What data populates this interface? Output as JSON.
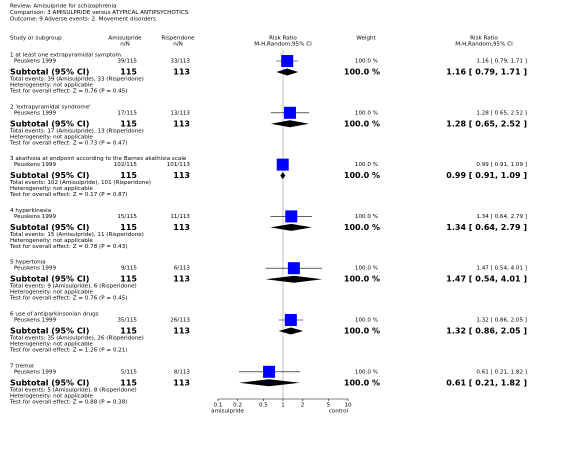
{
  "header": {
    "review": "Review:   Amisulpride for schizophrenia",
    "comparison": "Comparison:   3 AMISULPRIDE versus ATYPICAL ANTIPSYCHOTICS",
    "outcome": "Outcome:   9 Adverse events: 2. Movement disorders"
  },
  "columns": {
    "study": "Study or subgroup",
    "exp": "Amisulpride",
    "exp_unit": "n/N",
    "ctrl": "Risperidone",
    "ctrl_unit": "n/N",
    "plot": "Risk Ratio",
    "plot_method": "M-H,Random,95% CI",
    "weight": "Weight",
    "result": "Risk Ratio",
    "result_method": "M-H,Random,95% CI"
  },
  "subtotal_label": "Subtotal (95% CI)",
  "subgroups": [
    {
      "title": "1 at least one extrapyramidal symptom",
      "study": "Peuskens 1999",
      "exp": "39/115",
      "ctrl": "33/113",
      "weight": "100.0 %",
      "rr": 1.16,
      "ci": [
        0.79,
        1.71
      ],
      "rr_label": "1.16 [ 0.79, 1.71 ]",
      "sub_exp": 115,
      "sub_ctrl": 113,
      "sub_weight": "100.0 %",
      "sub_label": "1.16 [ 0.79, 1.71 ]",
      "events": "Total events: 39 (Amisulpride), 33 (Risperidone)",
      "het": "Heterogeneity: not applicable",
      "test": "Test for overall effect: Z = 0.76 (P = 0.45)"
    },
    {
      "title": "2 'extrapyramidal syndrome'",
      "study": "Peuskens 1999",
      "exp": "17/115",
      "ctrl": "13/113",
      "weight": "100.0 %",
      "rr": 1.28,
      "ci": [
        0.65,
        2.52
      ],
      "rr_label": "1.28 [ 0.65, 2.52 ]",
      "sub_exp": 115,
      "sub_ctrl": 113,
      "sub_weight": "100.0 %",
      "sub_label": "1.28 [ 0.65, 2.52 ]",
      "events": "Total events: 17 (Amisulpride), 13 (Risperidone)",
      "het": "Heterogeneity: not applicable",
      "test": "Test for overall effect: Z = 0.73 (P = 0.47)"
    },
    {
      "title": "3 akathisia at endpoint according to the Barnes akathisia scale",
      "study": "Peuskens 1999",
      "exp": "102/115",
      "ctrl": "101/113",
      "weight": "100.0 %",
      "rr": 0.99,
      "ci": [
        0.91,
        1.09
      ],
      "rr_label": "0.99 [ 0.91, 1.09 ]",
      "sub_exp": 115,
      "sub_ctrl": 113,
      "sub_weight": "100.0 %",
      "sub_label": "0.99 [ 0.91, 1.09 ]",
      "events": "Total events: 102 (Amisulpride), 101 (Risperidone)",
      "het": "Heterogeneity: not applicable",
      "test": "Test for overall effect: Z = 0.17 (P = 0.87)"
    },
    {
      "title": "4 hyperkinesia",
      "study": "Peuskens 1999",
      "exp": "15/115",
      "ctrl": "11/113",
      "weight": "100.0 %",
      "rr": 1.34,
      "ci": [
        0.64,
        2.79
      ],
      "rr_label": "1.34 [ 0.64, 2.79 ]",
      "sub_exp": 115,
      "sub_ctrl": 113,
      "sub_weight": "100.0 %",
      "sub_label": "1.34 [ 0.64, 2.79 ]",
      "events": "Total events: 15 (Amisulpride), 11 (Risperidone)",
      "het": "Heterogeneity: not applicable",
      "test": "Test for overall effect: Z = 0.78 (P = 0.43)"
    },
    {
      "title": "5 hypertonia",
      "study": "Peuskens 1999",
      "exp": "9/115",
      "ctrl": "6/113",
      "weight": "100.0 %",
      "rr": 1.47,
      "ci": [
        0.54,
        4.01
      ],
      "rr_label": "1.47 [ 0.54, 4.01 ]",
      "sub_exp": 115,
      "sub_ctrl": 113,
      "sub_weight": "100.0 %",
      "sub_label": "1.47 [ 0.54, 4.01 ]",
      "events": "Total events: 9 (Amisulpride), 6 (Risperidone)",
      "het": "Heterogeneity: not applicable",
      "test": "Test for overall effect: Z = 0.76 (P = 0.45)"
    },
    {
      "title": "6 use of antiparkinsonian drugs",
      "study": "Peuskens 1999",
      "exp": "35/115",
      "ctrl": "26/113",
      "weight": "100.0 %",
      "rr": 1.32,
      "ci": [
        0.86,
        2.05
      ],
      "rr_label": "1.32 [ 0.86, 2.05 ]",
      "sub_exp": 115,
      "sub_ctrl": 113,
      "sub_weight": "100.0 %",
      "sub_label": "1.32 [ 0.86, 2.05 ]",
      "events": "Total events: 35 (Amisulpride), 26 (Risperidone)",
      "het": "Heterogeneity: not applicable",
      "test": "Test for overall effect: Z = 1.26 (P = 0.21)"
    },
    {
      "title": "7 tremor",
      "study": "Peuskens 1999",
      "exp": "5/115",
      "ctrl": "8/113",
      "weight": "100.0 %",
      "rr": 0.61,
      "ci": [
        0.21,
        1.82
      ],
      "rr_label": "0.61 [ 0.21, 1.82 ]",
      "sub_exp": 115,
      "sub_ctrl": 113,
      "sub_weight": "100.0 %",
      "sub_label": "0.61 [ 0.21, 1.82 ]",
      "events": "Total events: 5 (Amisulpride), 8 (Risperidone)",
      "het": "Heterogeneity: not applicable",
      "test": "Test for overall effect: Z = 0.88 (P = 0.38)"
    }
  ],
  "axis": {
    "log": true,
    "xlim": [
      0.1,
      10
    ],
    "xticks": [
      0.1,
      0.2,
      0.5,
      1,
      2,
      5,
      10
    ],
    "left_label": "amisulpride",
    "right_label": "control",
    "mark_color": "#0000ff"
  }
}
